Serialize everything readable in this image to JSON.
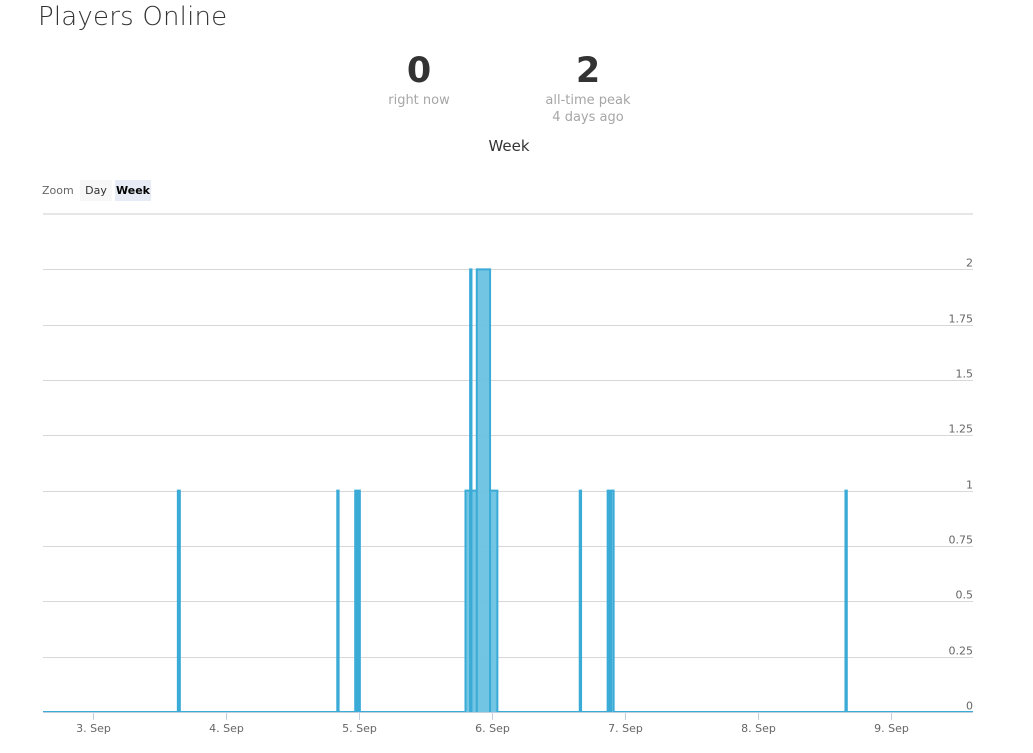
{
  "page": {
    "title": "Players Online"
  },
  "stats": {
    "right_now": {
      "value": "0",
      "label": "right now"
    },
    "peak": {
      "value": "2",
      "label": "all-time peak",
      "sublabel": "4 days ago"
    }
  },
  "zoom": {
    "label": "Zoom",
    "options": [
      "Day",
      "Week"
    ],
    "selected": "Week"
  },
  "colors": {
    "series": "#3aaad6",
    "fill": "#6cc2e3",
    "grid": "#d8d8d8",
    "text": "#333333",
    "muted": "#666666"
  },
  "chart_data": {
    "type": "area",
    "title": "Week",
    "xlabel": "",
    "ylabel": "",
    "x_tick_labels": [
      "3. Sep",
      "4. Sep",
      "5. Sep",
      "6. Sep",
      "7. Sep",
      "8. Sep",
      "9. Sep"
    ],
    "y_tick_labels": [
      "0",
      "0.25",
      "0.5",
      "0.75",
      "1",
      "1.25",
      "1.5",
      "1.75",
      "2"
    ],
    "xlim": [
      2.62,
      9.62
    ],
    "ylim": [
      0,
      2.25
    ],
    "y_axis_position": "right",
    "grid": true,
    "legend": "none",
    "spikes": [
      {
        "start": 3.635,
        "end": 3.65,
        "value": 1
      },
      {
        "start": 4.835,
        "end": 4.845,
        "value": 1
      },
      {
        "start": 4.97,
        "end": 4.98,
        "value": 1
      },
      {
        "start": 4.995,
        "end": 5.005,
        "value": 1
      },
      {
        "start": 5.8,
        "end": 5.835,
        "value": 1
      },
      {
        "start": 5.835,
        "end": 5.845,
        "value": 2
      },
      {
        "start": 5.845,
        "end": 5.885,
        "value": 1
      },
      {
        "start": 5.885,
        "end": 5.985,
        "value": 2
      },
      {
        "start": 5.985,
        "end": 6.04,
        "value": 1
      },
      {
        "start": 6.66,
        "end": 6.67,
        "value": 1
      },
      {
        "start": 6.87,
        "end": 6.885,
        "value": 1
      },
      {
        "start": 6.895,
        "end": 6.915,
        "value": 1
      },
      {
        "start": 8.66,
        "end": 8.67,
        "value": 1
      }
    ]
  }
}
